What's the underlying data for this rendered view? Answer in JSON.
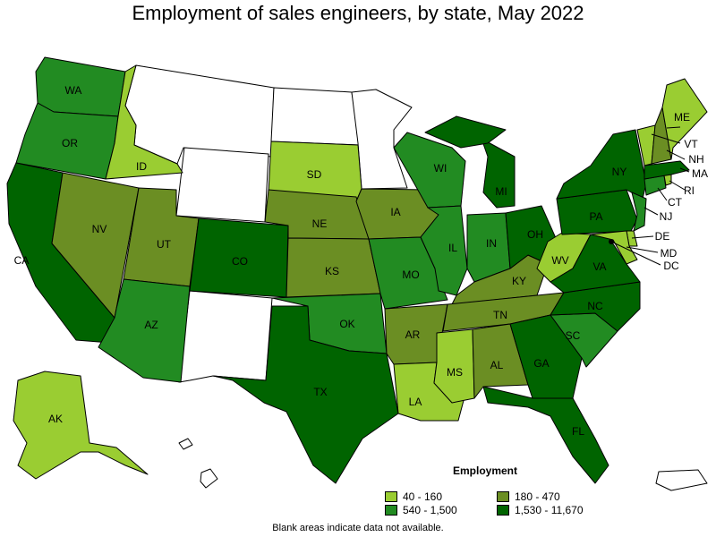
{
  "title": "Employment of sales engineers, by state, May 2022",
  "legend": {
    "title": "Employment",
    "items": [
      {
        "label": "40 - 160",
        "color": "#9acd32"
      },
      {
        "label": "180 - 470",
        "color": "#6b8e23"
      },
      {
        "label": "540 - 1,500",
        "color": "#228b22"
      },
      {
        "label": "1,530 - 11,670",
        "color": "#006400"
      }
    ]
  },
  "footnote": "Blank areas indicate data not available.",
  "colors": {
    "none": "#ffffff",
    "c1": "#9acd32",
    "c2": "#6b8e23",
    "c3": "#228b22",
    "c4": "#006400"
  },
  "states": {
    "WA": "WA",
    "OR": "OR",
    "CA": "CA",
    "ID": "ID",
    "NV": "NV",
    "UT": "UT",
    "AZ": "AZ",
    "CO": "CO",
    "SD": "SD",
    "NE": "NE",
    "KS": "KS",
    "OK": "OK",
    "TX": "TX",
    "IA": "IA",
    "MO": "MO",
    "AR": "AR",
    "LA": "LA",
    "WI": "WI",
    "IL": "IL",
    "MS": "MS",
    "MI": "MI",
    "IN": "IN",
    "KY": "KY",
    "TN": "TN",
    "AL": "AL",
    "OH": "OH",
    "WV": "WV",
    "GA": "GA",
    "FL": "FL",
    "SC": "SC",
    "NC": "NC",
    "VA": "VA",
    "PA": "PA",
    "NY": "NY",
    "ME": "ME",
    "VT": "VT",
    "NH": "NH",
    "MA": "MA",
    "RI": "RI",
    "CT": "CT",
    "NJ": "NJ",
    "DE": "DE",
    "MD": "MD",
    "DC": "DC",
    "AK": "AK"
  }
}
